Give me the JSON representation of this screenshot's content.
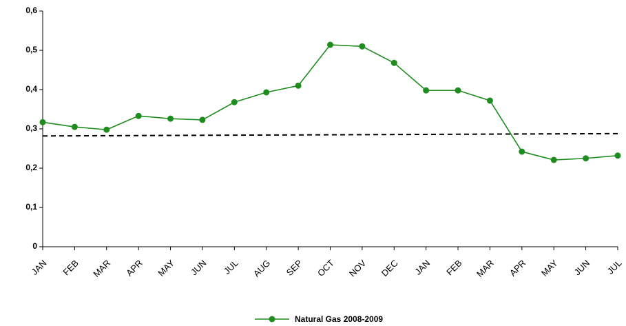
{
  "chart_data": {
    "type": "line",
    "categories": [
      "JAN",
      "FEB",
      "MAR",
      "APR",
      "MAY",
      "JUN",
      "JUL",
      "AUG",
      "SEP",
      "OCT",
      "NOV",
      "DEC",
      "JAN",
      "FEB",
      "MAR",
      "APR",
      "MAY",
      "JUN",
      "JUL"
    ],
    "series": [
      {
        "name": "Natural Gas 2008-2009",
        "color": "#1e8c1e",
        "values": [
          0.317,
          0.305,
          0.298,
          0.333,
          0.326,
          0.323,
          0.368,
          0.393,
          0.41,
          0.514,
          0.51,
          0.468,
          0.398,
          0.398,
          0.372,
          0.242,
          0.221,
          0.225,
          0.232
        ]
      }
    ],
    "reference_line": {
      "values": [
        0.282,
        0.288
      ],
      "color": "#000000",
      "dashed": true
    },
    "ylim": [
      0,
      0.6
    ],
    "yticks": [
      0,
      {
        "value": 0.1,
        "label": "0,1"
      },
      {
        "value": 0.2,
        "label": "0,2"
      },
      {
        "value": 0.3,
        "label": "0,3"
      },
      {
        "value": 0.4,
        "label": "0,4"
      },
      {
        "value": 0.5,
        "label": "0,5"
      },
      {
        "value": 0.6,
        "label": "0,6"
      }
    ],
    "grid": false,
    "legend": "bottom"
  }
}
